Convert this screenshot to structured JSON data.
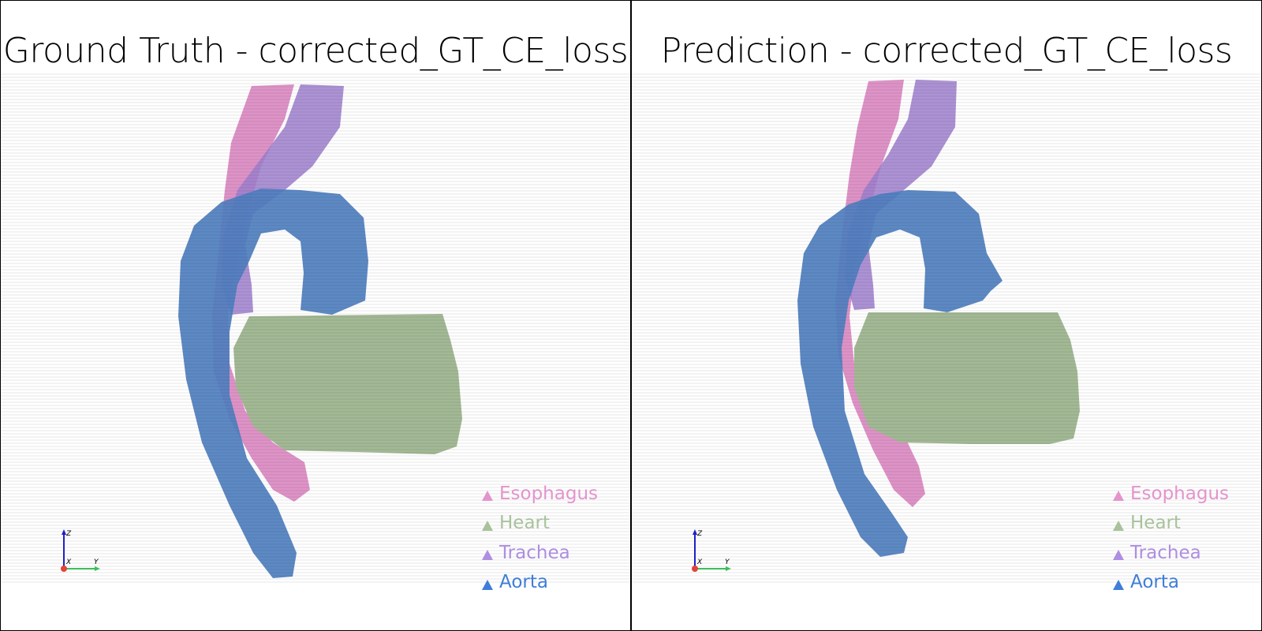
{
  "viewports": [
    {
      "title": "Ground Truth - corrected_GT_CE_loss",
      "legend": [
        {
          "label": "Esophagus",
          "color": "#e494cc"
        },
        {
          "label": "Heart",
          "color": "#a8c29c"
        },
        {
          "label": "Trachea",
          "color": "#ae8ee0"
        },
        {
          "label": "Aorta",
          "color": "#3f7ed8"
        }
      ],
      "axes": {
        "x_label": "X",
        "y_label": "Y",
        "z_label": "Z"
      }
    },
    {
      "title": "Prediction - corrected_GT_CE_loss",
      "legend": [
        {
          "label": "Esophagus",
          "color": "#e494cc"
        },
        {
          "label": "Heart",
          "color": "#a8c29c"
        },
        {
          "label": "Trachea",
          "color": "#ae8ee0"
        },
        {
          "label": "Aorta",
          "color": "#3f7ed8"
        }
      ],
      "axes": {
        "x_label": "X",
        "y_label": "Y",
        "z_label": "Z"
      }
    }
  ],
  "colors": {
    "esophagus": "#d880bd",
    "heart": "#a3b995",
    "trachea": "#9e7fcc",
    "aorta": "#4f7fbf",
    "axis_x": "#e0443a",
    "axis_y": "#3bbf5a",
    "axis_z": "#2020c8"
  }
}
